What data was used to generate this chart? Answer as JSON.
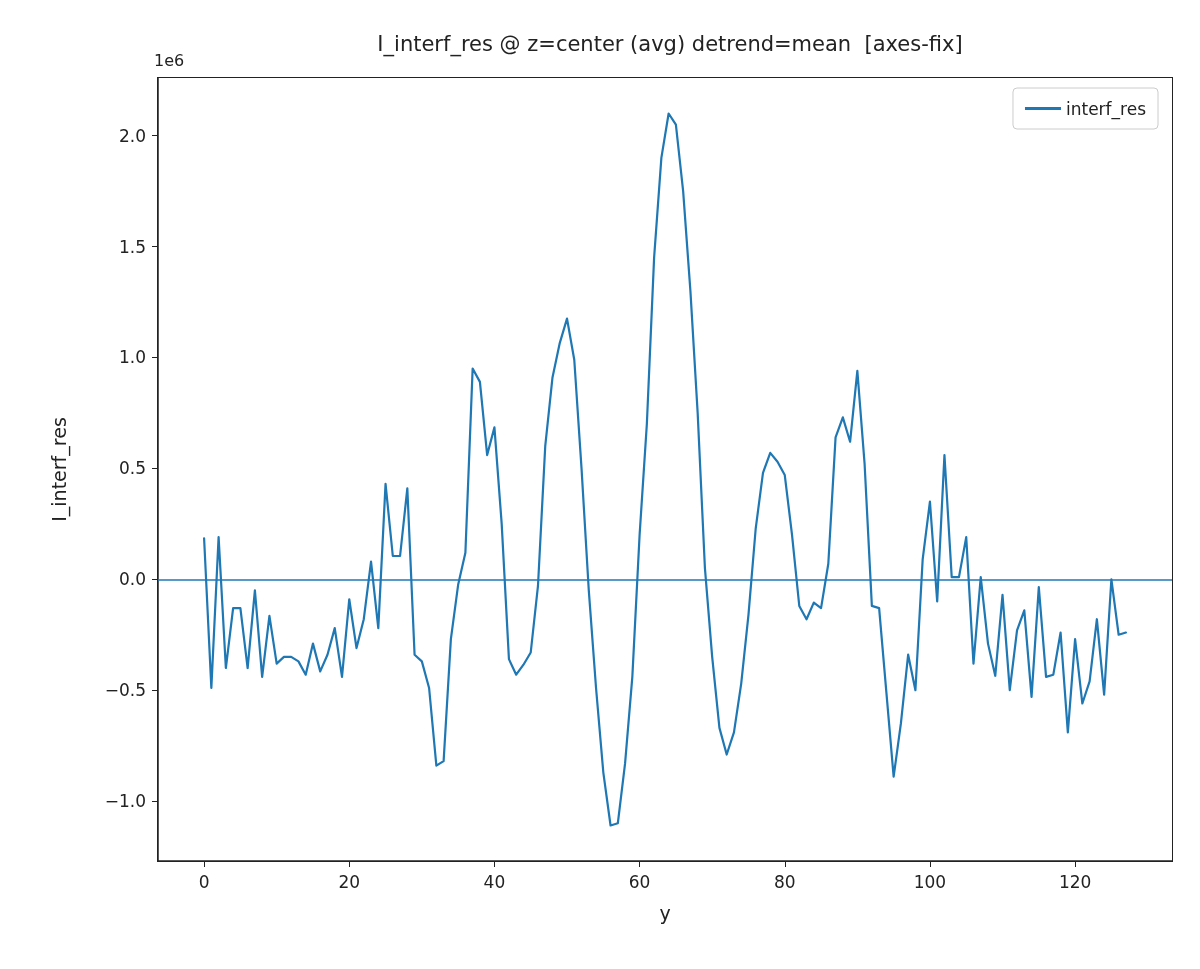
{
  "chart_data": {
    "type": "line",
    "title": "I_interf_res @ z=center (avg) detrend=mean  [axes-fix]",
    "xlabel": "y",
    "ylabel": "I_interf_res",
    "annotations": [
      "1e6"
    ],
    "x": [
      0,
      1,
      2,
      3,
      4,
      5,
      6,
      7,
      8,
      9,
      10,
      11,
      12,
      13,
      14,
      15,
      16,
      17,
      18,
      19,
      20,
      21,
      22,
      23,
      24,
      25,
      26,
      27,
      28,
      29,
      30,
      31,
      32,
      33,
      34,
      35,
      36,
      37,
      38,
      39,
      40,
      41,
      42,
      43,
      44,
      45,
      46,
      47,
      48,
      49,
      50,
      51,
      52,
      53,
      54,
      55,
      56,
      57,
      58,
      59,
      60,
      61,
      62,
      63,
      64,
      65,
      66,
      67,
      68,
      69,
      70,
      71,
      72,
      73,
      74,
      75,
      76,
      77,
      78,
      79,
      80,
      81,
      82,
      83,
      84,
      85,
      86,
      87,
      88,
      89,
      90,
      91,
      92,
      93,
      94,
      95,
      96,
      97,
      98,
      99,
      100,
      101,
      102,
      103,
      104,
      105,
      106,
      107,
      108,
      109,
      110,
      111,
      112,
      113,
      114,
      115,
      116,
      117,
      118,
      119,
      120,
      121,
      122,
      123,
      124,
      125,
      126,
      127
    ],
    "series": [
      {
        "name": "interf_res",
        "color": "#1f77b4",
        "values": [
          0.185,
          -0.49,
          0.19,
          -0.4,
          -0.13,
          -0.13,
          -0.4,
          -0.05,
          -0.44,
          -0.165,
          -0.38,
          -0.35,
          -0.35,
          -0.37,
          -0.43,
          -0.29,
          -0.415,
          -0.34,
          -0.22,
          -0.44,
          -0.09,
          -0.31,
          -0.18,
          0.08,
          -0.22,
          0.43,
          0.105,
          0.105,
          0.41,
          -0.34,
          -0.37,
          -0.49,
          -0.84,
          -0.82,
          -0.27,
          -0.025,
          0.12,
          0.95,
          0.89,
          0.56,
          0.685,
          0.25,
          -0.36,
          -0.43,
          -0.385,
          -0.33,
          -0.03,
          0.6,
          0.91,
          1.065,
          1.175,
          0.99,
          0.5,
          -0.05,
          -0.49,
          -0.87,
          -1.11,
          -1.1,
          -0.83,
          -0.44,
          0.2,
          0.7,
          1.45,
          1.9,
          2.1,
          2.05,
          1.75,
          1.3,
          0.75,
          0.05,
          -0.35,
          -0.67,
          -0.79,
          -0.69,
          -0.47,
          -0.16,
          0.23,
          0.48,
          0.57,
          0.53,
          0.47,
          0.2,
          -0.12,
          -0.18,
          -0.105,
          -0.13,
          0.07,
          0.64,
          0.73,
          0.62,
          0.94,
          0.52,
          -0.12,
          -0.13,
          -0.51,
          -0.89,
          -0.65,
          -0.34,
          -0.5,
          0.09,
          0.35,
          -0.1,
          0.56,
          0.01,
          0.01,
          0.19,
          -0.38,
          0.01,
          -0.29,
          -0.435,
          -0.07,
          -0.5,
          -0.23,
          -0.14,
          -0.53,
          -0.035,
          -0.44,
          -0.43,
          -0.24,
          -0.69,
          -0.27,
          -0.56,
          -0.46,
          -0.18,
          -0.52,
          0.0,
          -0.25,
          -0.24
        ]
      }
    ],
    "ref_lines": [
      {
        "axis": "y",
        "value": 0,
        "color": "#1f77b4"
      }
    ],
    "xlim": [
      -6.35,
      133.35
    ],
    "xticks": [
      0,
      20,
      40,
      60,
      80,
      100,
      120
    ],
    "ylim": [
      -1.27,
      2.26
    ],
    "yticks": [
      {
        "value": -1.0,
        "label": "−1.0"
      },
      {
        "value": -0.5,
        "label": "−0.5"
      },
      {
        "value": 0.0,
        "label": "0.0"
      },
      {
        "value": 0.5,
        "label": "0.5"
      },
      {
        "value": 1.0,
        "label": "1.0"
      },
      {
        "value": 1.5,
        "label": "1.5"
      },
      {
        "value": 2.0,
        "label": "2.0"
      }
    ],
    "grid": false,
    "legend": "top right",
    "marker": "none",
    "line_style": "solid"
  }
}
